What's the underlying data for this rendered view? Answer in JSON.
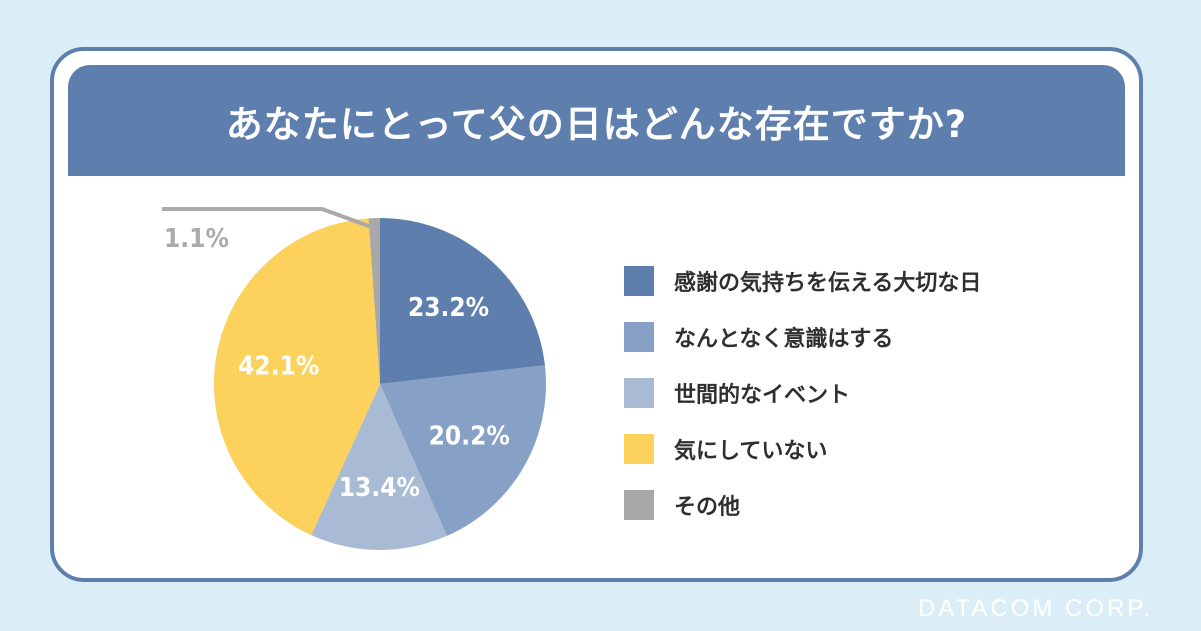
{
  "title": "あなたにとって父の日はどんな存在ですか?",
  "watermark": "DATACOM CORP.",
  "chart_data": {
    "type": "pie",
    "title": "あなたにとって父の日はどんな存在ですか?",
    "categories": [
      "感謝の気持ちを伝える大切な日",
      "なんとなく意識はする",
      "世間的なイベント",
      "気にしていない",
      "その他"
    ],
    "values": [
      23.2,
      20.2,
      13.4,
      42.1,
      1.1
    ],
    "value_labels": [
      "23.2%",
      "20.2%",
      "13.4%",
      "42.1%",
      "1.1%"
    ],
    "colors": [
      "#5e7fae",
      "#86a1c5",
      "#a9bbd4",
      "#fcd15c",
      "#a8a8a8"
    ],
    "label_colors": [
      "#ffffff",
      "#ffffff",
      "#ffffff",
      "#ffffff",
      "#aaaaaa"
    ],
    "start_angle_deg": 0,
    "direction": "clockwise",
    "legend_position": "right"
  }
}
